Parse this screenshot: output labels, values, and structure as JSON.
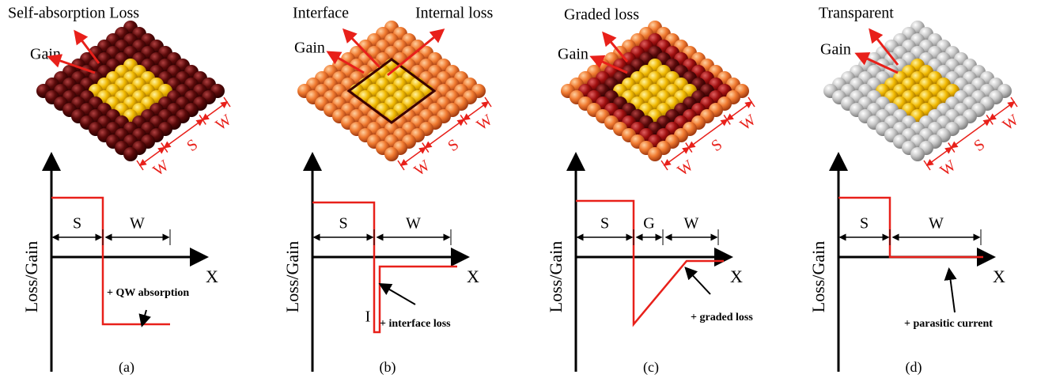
{
  "panels": [
    {
      "label": "(a)",
      "callouts": [
        "Self-absorption Loss",
        "Gain"
      ],
      "array_dims": [
        "W",
        "S",
        "W"
      ],
      "y_axis_label": "Loss/Gain",
      "x_axis_label": "X",
      "segments": [
        "S",
        "W"
      ],
      "note": "+ QW absorption"
    },
    {
      "label": "(b)",
      "callouts": [
        "Interface",
        "Internal loss",
        "Gain"
      ],
      "array_dims": [
        "W",
        "S",
        "W"
      ],
      "y_axis_label": "Loss/Gain",
      "x_axis_label": "X",
      "segments": [
        "S",
        "W"
      ],
      "marker": "I",
      "note": "+ interface loss"
    },
    {
      "label": "(c)",
      "callouts": [
        "Graded loss",
        "Gain"
      ],
      "array_dims": [
        "W",
        "S",
        "W"
      ],
      "y_axis_label": "Loss/Gain",
      "x_axis_label": "X",
      "segments": [
        "S",
        "G",
        "W"
      ],
      "note": "+ graded loss"
    },
    {
      "label": "(d)",
      "callouts": [
        "Transparent",
        "Gain"
      ],
      "array_dims": [
        "W",
        "S",
        "W"
      ],
      "y_axis_label": "Loss/Gain",
      "x_axis_label": "X",
      "segments": [
        "S",
        "W"
      ],
      "note": "+ parasitic current"
    }
  ]
}
